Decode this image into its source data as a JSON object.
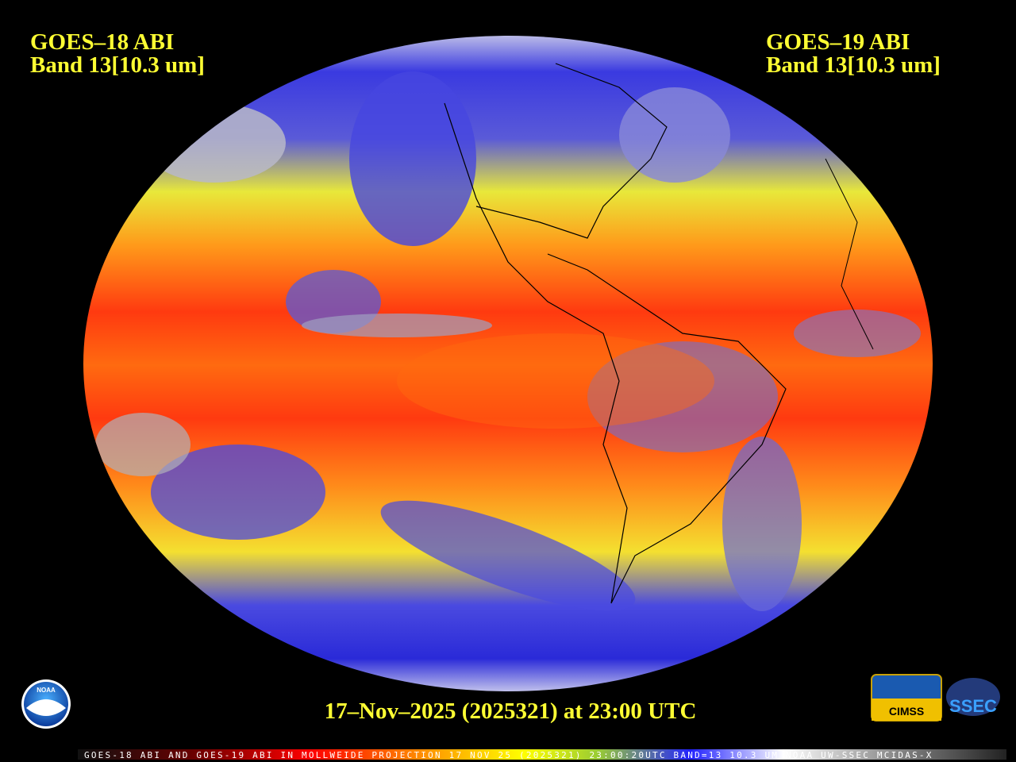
{
  "header": {
    "left": [
      "GOES–18 ABI",
      "Band 13[10.3 um]"
    ],
    "right": [
      "GOES–19 ABI",
      "Band 13[10.3 um]"
    ]
  },
  "timestamp": "17–Nov–2025 (2025321) at 23:00 UTC",
  "footer": "GOES-18 ABI AND GOES-19 ABI IN MOLLWEIDE PROJECTION 17 NOV 25 (2025321) 23:00:20UTC BAND=13 10.3 UM NOAA UW-SSEC MCIDAS-X",
  "logos": [
    "NOAA",
    "CIMSS",
    "SSEC"
  ]
}
